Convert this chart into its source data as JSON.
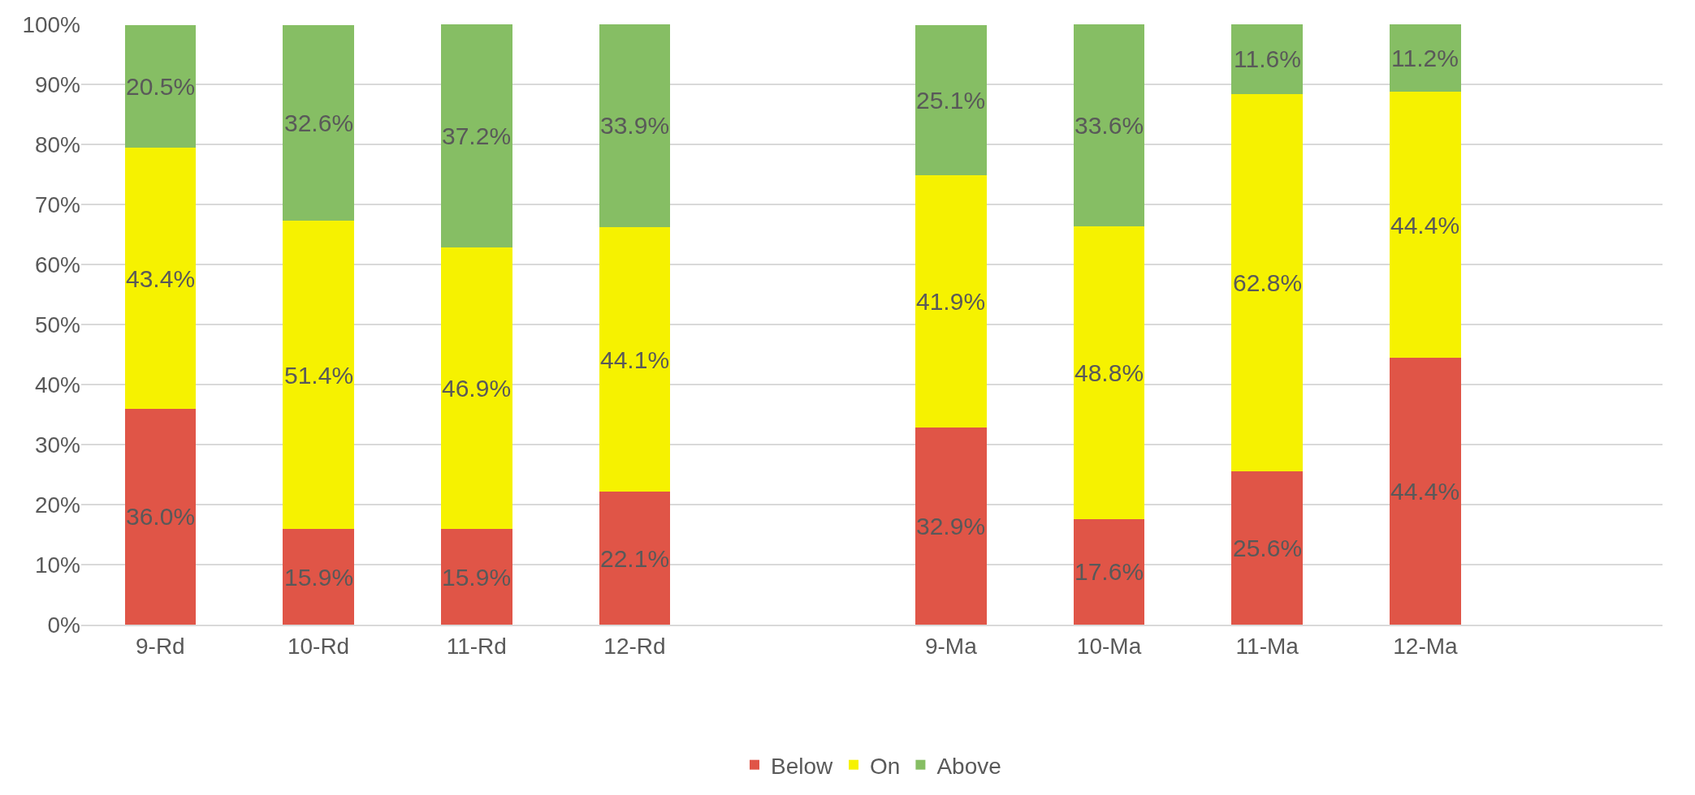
{
  "chart_data": {
    "type": "bar",
    "stacked": true,
    "categories": [
      "9-Rd",
      "10-Rd",
      "11-Rd",
      "12-Rd",
      null,
      "9-Ma",
      "10-Ma",
      "11-Ma",
      "12-Ma",
      null
    ],
    "series": [
      {
        "name": "Below",
        "color": "#e05547",
        "values": [
          36.0,
          15.9,
          15.9,
          22.1,
          null,
          32.9,
          17.6,
          25.6,
          44.4,
          null
        ],
        "value_labels": [
          "36.0%",
          "15.9%",
          "15.9%",
          "22.1%",
          null,
          "32.9%",
          "17.6%",
          "25.6%",
          "44.4%",
          null
        ]
      },
      {
        "name": "On",
        "color": "#f6f200",
        "values": [
          43.4,
          51.4,
          46.9,
          44.1,
          null,
          41.9,
          48.8,
          62.8,
          44.4,
          null
        ],
        "value_labels": [
          "43.4%",
          "51.4%",
          "46.9%",
          "44.1%",
          null,
          "41.9%",
          "48.8%",
          "62.8%",
          "44.4%",
          null
        ]
      },
      {
        "name": "Above",
        "color": "#86be64",
        "values": [
          20.5,
          32.6,
          37.2,
          33.9,
          null,
          25.1,
          33.6,
          11.6,
          11.2,
          null
        ],
        "value_labels": [
          "20.5%",
          "32.6%",
          "37.2%",
          "33.9%",
          null,
          "25.1%",
          "33.6%",
          "11.6%",
          "11.2%",
          null
        ]
      }
    ],
    "ylim": [
      0,
      100
    ],
    "yticks": [
      {
        "value": 0,
        "label": "0%"
      },
      {
        "value": 10,
        "label": "10%"
      },
      {
        "value": 20,
        "label": "20%"
      },
      {
        "value": 30,
        "label": "30%"
      },
      {
        "value": 40,
        "label": "40%"
      },
      {
        "value": 50,
        "label": "50%"
      },
      {
        "value": 60,
        "label": "60%"
      },
      {
        "value": 70,
        "label": "70%"
      },
      {
        "value": 80,
        "label": "80%"
      },
      {
        "value": 90,
        "label": "90%"
      },
      {
        "value": 100,
        "label": "100%"
      }
    ],
    "grid": "y",
    "legend": "bottom"
  }
}
